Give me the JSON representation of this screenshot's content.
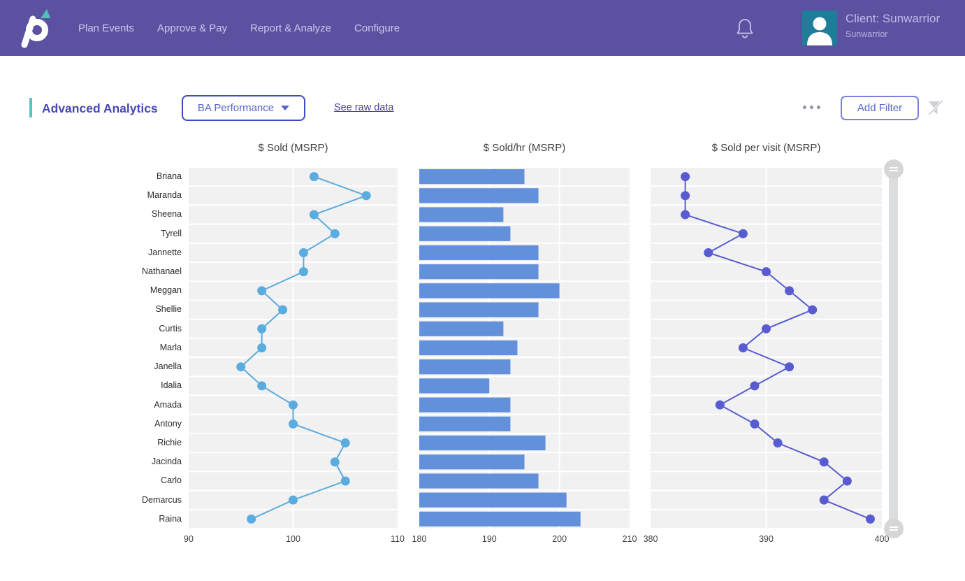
{
  "header": {
    "nav": [
      "Plan Events",
      "Approve & Pay",
      "Report & Analyze",
      "Configure"
    ],
    "client_title": "Client: Sunwarrior",
    "client_subtitle": "Sunwarrior"
  },
  "toolbar": {
    "page_title": "Advanced Analytics",
    "view_selector_label": "BA Performance",
    "raw_data_link": "See raw data",
    "add_filter_label": "Add Filter"
  },
  "theme": {
    "header_bg": "#5a52a0",
    "accent_teal": "#52c7bd",
    "avatar_bg": "#1e7d99",
    "row_band": "#f1f1f2",
    "chart1_color": "#5bacde",
    "chart2_color": "#6290db",
    "chart3_color": "#585cd0"
  },
  "chart_data": [
    {
      "type": "line",
      "title": "$ Sold (MSRP)",
      "xlabel": "",
      "ylabel": "",
      "xlim": [
        90,
        110
      ],
      "ticks": [
        90,
        100,
        110
      ],
      "grid": true,
      "color": "#5bacde",
      "categories": [
        "Briana",
        "Maranda",
        "Sheena",
        "Tyrell",
        "Jannette",
        "Nathanael",
        "Meggan",
        "Shellie",
        "Curtis",
        "Marla",
        "Janella",
        "Idalia",
        "Amada",
        "Antony",
        "Richie",
        "Jacinda",
        "Carlo",
        "Demarcus",
        "Raina"
      ],
      "values": [
        102,
        107,
        102,
        104,
        101,
        101,
        97,
        99,
        97,
        97,
        95,
        97,
        100,
        100,
        105,
        104,
        105,
        100,
        96
      ]
    },
    {
      "type": "bar",
      "title": "$ Sold/hr (MSRP)",
      "xlabel": "",
      "ylabel": "",
      "xlim": [
        180,
        210
      ],
      "ticks": [
        180,
        190,
        200,
        210
      ],
      "grid": true,
      "color": "#6290db",
      "categories": [
        "Briana",
        "Maranda",
        "Sheena",
        "Tyrell",
        "Jannette",
        "Nathanael",
        "Meggan",
        "Shellie",
        "Curtis",
        "Marla",
        "Janella",
        "Idalia",
        "Amada",
        "Antony",
        "Richie",
        "Jacinda",
        "Carlo",
        "Demarcus",
        "Raina"
      ],
      "values": [
        195,
        197,
        192,
        193,
        197,
        197,
        200,
        197,
        192,
        194,
        193,
        190,
        193,
        193,
        198,
        195,
        197,
        201,
        203
      ]
    },
    {
      "type": "line",
      "title": "$ Sold per visit (MSRP)",
      "xlabel": "",
      "ylabel": "",
      "xlim": [
        380,
        400
      ],
      "ticks": [
        380,
        390,
        400
      ],
      "grid": true,
      "color": "#585cd0",
      "categories": [
        "Briana",
        "Maranda",
        "Sheena",
        "Tyrell",
        "Jannette",
        "Nathanael",
        "Meggan",
        "Shellie",
        "Curtis",
        "Marla",
        "Janella",
        "Idalia",
        "Amada",
        "Antony",
        "Richie",
        "Jacinda",
        "Carlo",
        "Demarcus",
        "Raina"
      ],
      "values": [
        383,
        383,
        383,
        388,
        385,
        390,
        392,
        394,
        390,
        388,
        392,
        389,
        386,
        389,
        391,
        395,
        397,
        395,
        399
      ]
    }
  ]
}
